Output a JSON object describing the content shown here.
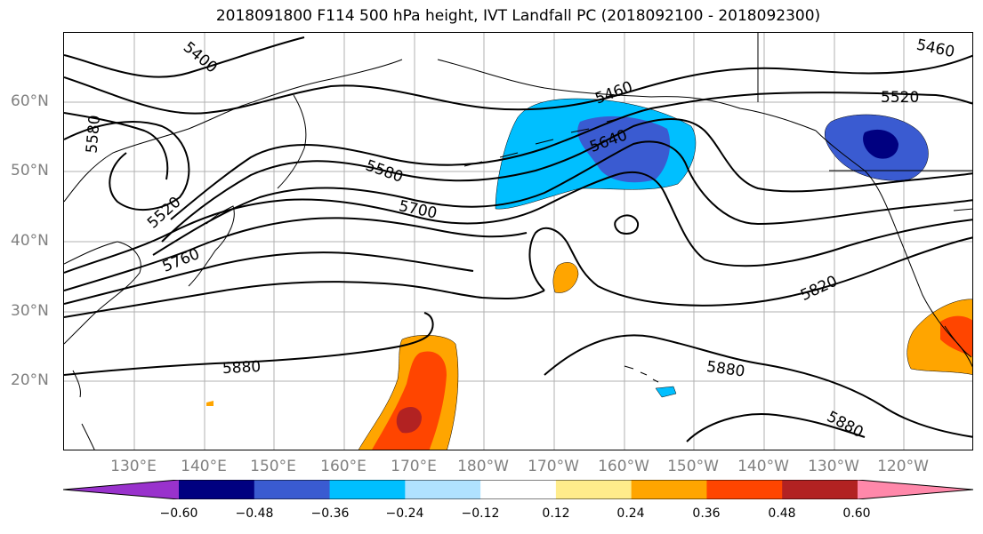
{
  "title": "2018091800 F114 500 hPa height, IVT Landfall PC (2018092100 - 2018092300)",
  "lat_labels": [
    "60°N",
    "50°N",
    "40°N",
    "30°N",
    "20°N"
  ],
  "lon_labels": [
    "130°E",
    "140°E",
    "150°E",
    "160°E",
    "170°E",
    "180°W",
    "170°W",
    "160°W",
    "150°W",
    "140°W",
    "130°W",
    "120°W"
  ],
  "contour_labels": [
    "5400",
    "5460",
    "5460",
    "5520",
    "5520",
    "5580",
    "5580",
    "5640",
    "5700",
    "5760",
    "5820",
    "5880",
    "5880",
    "5880"
  ],
  "colorbar": {
    "colors": [
      "#9932CC",
      "#000080",
      "#3A5BD1",
      "#00BFFF",
      "#B0E2FF",
      "#FFFFFF",
      "#FFEC8B",
      "#FFA500",
      "#FF4500",
      "#B22222",
      "#FF88AA"
    ],
    "ticks": [
      "−0.60",
      "−0.48",
      "−0.36",
      "−0.24",
      "−0.12",
      "0.12",
      "0.24",
      "0.36",
      "0.48",
      "0.60"
    ]
  },
  "colors": {
    "grid": "#b0b0b0",
    "contour": "#000000",
    "coast": "#000000",
    "axis_labels": "#808080"
  }
}
